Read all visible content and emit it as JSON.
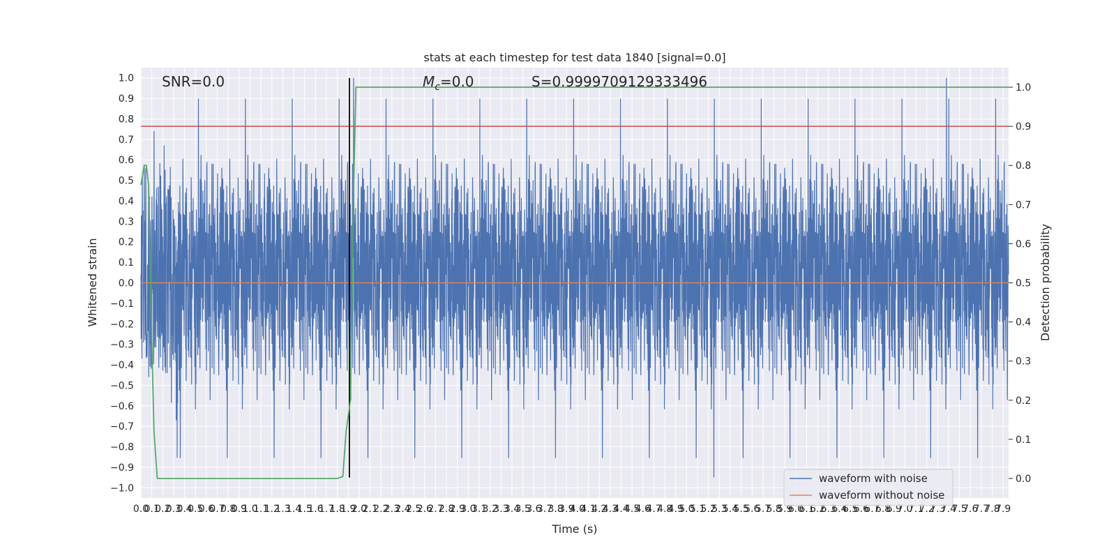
{
  "chart_data": {
    "type": "line",
    "title": "stats at each timestep for test data 1840 [signal=0.0]",
    "xlabel": "Time (s)",
    "ylabel": "Whitened strain",
    "y2label": "Detection probability",
    "xlim": [
      0.0,
      7.95
    ],
    "ylim": [
      -1.05,
      1.05
    ],
    "y2lim": [
      -0.05,
      1.05
    ],
    "x_tick_step": 0.1,
    "y_tick_step": 0.1,
    "y2_tick_step": 0.1,
    "grid": true,
    "annotations": {
      "snr": "SNR=0.0",
      "mc_symbol": "M",
      "mc_sub": "c",
      "mc_value": "=0.0",
      "s_text": "S=0.9999709129333496"
    },
    "threshold_line": {
      "axis": "y2",
      "value": 0.9,
      "color": "#c44e52"
    },
    "event_marker": {
      "x": 1.91,
      "ymin": -0.95,
      "ymax": 1.0,
      "color": "#000000"
    },
    "series": [
      {
        "name": "waveform with noise",
        "axis": "y1",
        "color": "#4c72b0",
        "kind": "noise",
        "sample_rate": 512,
        "envelope_typical": 0.55,
        "peak_max": 1.0,
        "peak_min": -0.95
      },
      {
        "name": "waveform without noise",
        "axis": "y1",
        "color": "#dd8452",
        "x": [
          0.0,
          7.95
        ],
        "y": [
          0.0,
          0.0
        ]
      },
      {
        "name": "Detection probability",
        "axis": "y2",
        "color": "#55a868",
        "legend": false,
        "x": [
          0.0,
          0.03,
          0.05,
          0.07,
          0.1,
          0.12,
          0.15,
          0.18,
          1.75,
          1.8,
          1.85,
          1.88,
          1.92,
          1.95,
          1.97,
          2.0,
          7.95
        ],
        "y": [
          0.75,
          0.8,
          0.8,
          0.75,
          0.35,
          0.12,
          0.0,
          0.0,
          0.0,
          0.0,
          0.005,
          0.12,
          0.2,
          0.75,
          1.0,
          1.0,
          1.0
        ]
      }
    ],
    "legend": {
      "position": "lower-right",
      "entries": [
        "waveform with noise",
        "waveform without noise"
      ]
    }
  }
}
